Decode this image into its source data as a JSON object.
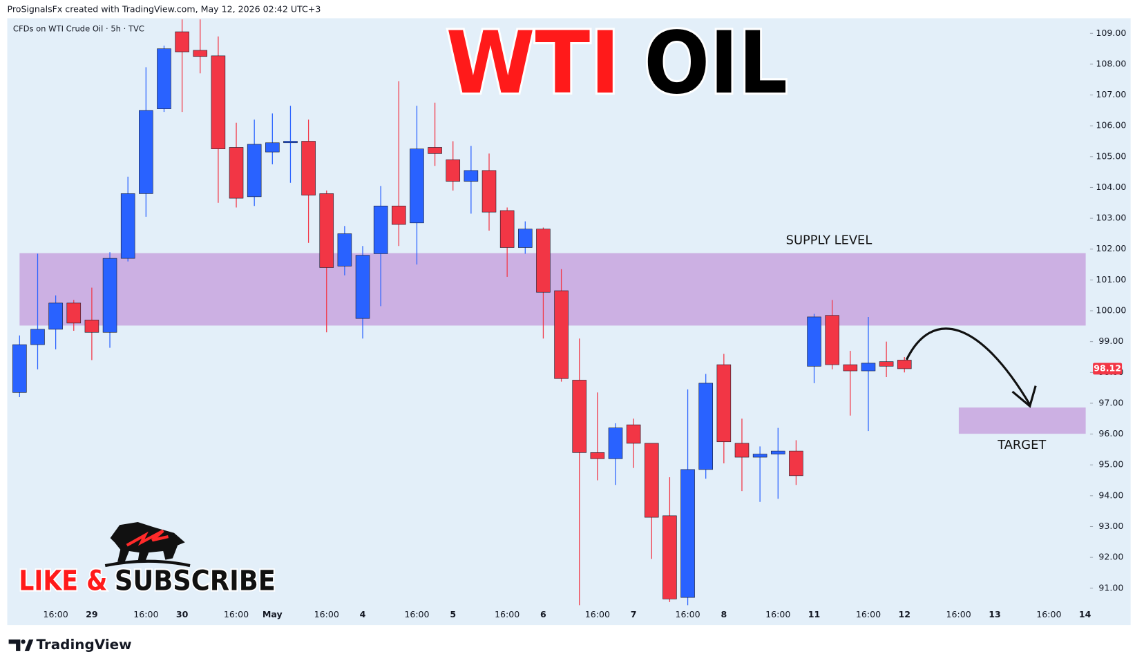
{
  "chart_data": {
    "type": "candlestick",
    "watermark": "ProSignalsFx created with TradingView.com, May 12, 2026 02:42 UTC+3",
    "symbol_info": "CFDs on WTI Crude Oil · 5h · TVC",
    "title_parts": [
      "WTI",
      "OIL"
    ],
    "title_colors": [
      "#ff1a1a",
      "#000000"
    ],
    "promo_parts": [
      "LIKE &",
      "SUBSCRIBE"
    ],
    "brand": "TradingView",
    "up_color": "#2962ff",
    "down_color": "#f23645",
    "zone_color": "#c9a9e0",
    "categories": [
      null,
      null,
      "16:00",
      null,
      "29",
      null,
      null,
      "16:00",
      null,
      "30",
      null,
      null,
      "16:00",
      null,
      "May",
      null,
      null,
      "16:00",
      null,
      "4",
      null,
      null,
      "16:00",
      null,
      "5",
      null,
      null,
      "16:00",
      null,
      "6",
      null,
      null,
      "16:00",
      null,
      "7",
      null,
      null,
      "16:00",
      null,
      "8",
      null,
      null,
      "16:00",
      null,
      "11",
      null,
      null,
      "16:00",
      null,
      "12",
      null,
      null,
      "16:00",
      null,
      "13",
      null,
      null,
      "16:00",
      null,
      "14"
    ],
    "open": [
      97.35,
      98.9,
      99.4,
      100.25,
      99.7,
      99.3,
      101.7,
      103.8,
      106.55,
      109.05,
      108.45,
      108.27,
      105.3,
      103.7,
      105.15,
      105.45,
      105.5,
      103.8,
      101.45,
      99.75,
      101.85,
      103.4,
      102.85,
      105.3,
      104.9,
      104.2,
      104.55,
      103.25,
      102.05,
      102.65,
      100.65,
      97.75,
      95.4,
      95.2,
      96.3,
      95.7,
      93.35,
      90.7,
      94.85,
      98.25,
      95.7,
      95.25,
      95.35,
      95.45,
      98.2,
      99.85,
      98.25,
      98.05,
      98.35,
      98.4,
      null,
      null,
      null,
      null,
      null,
      null,
      null,
      null,
      null,
      null
    ],
    "high": [
      99.2,
      101.85,
      100.5,
      100.35,
      100.75,
      101.9,
      104.35,
      107.9,
      108.6,
      109.45,
      109.45,
      108.9,
      106.1,
      106.2,
      106.4,
      106.65,
      106.2,
      103.9,
      102.75,
      102.1,
      104.05,
      107.45,
      106.65,
      106.75,
      105.5,
      105.35,
      105.1,
      103.35,
      102.9,
      102.7,
      101.35,
      99.1,
      97.35,
      96.35,
      96.5,
      95.7,
      94.6,
      97.45,
      97.95,
      98.6,
      96.5,
      95.6,
      96.2,
      95.8,
      99.9,
      100.35,
      98.7,
      99.8,
      99.0,
      98.5,
      null,
      null,
      null,
      null,
      null,
      null,
      null,
      null,
      null,
      null
    ],
    "low": [
      97.2,
      98.1,
      98.75,
      99.35,
      98.4,
      98.8,
      101.6,
      103.05,
      106.45,
      106.45,
      107.7,
      103.5,
      103.35,
      103.4,
      104.75,
      104.15,
      102.2,
      99.3,
      101.15,
      99.1,
      100.15,
      102.1,
      101.5,
      104.7,
      103.9,
      103.15,
      102.6,
      101.1,
      101.85,
      99.1,
      97.7,
      90.45,
      94.5,
      94.35,
      94.9,
      91.95,
      90.55,
      90.45,
      94.55,
      95.05,
      94.15,
      93.8,
      93.9,
      94.35,
      97.65,
      98.1,
      96.6,
      96.1,
      97.85,
      98.0,
      null,
      null,
      null,
      null,
      null,
      null,
      null,
      null,
      null,
      null
    ],
    "close": [
      98.9,
      99.4,
      100.25,
      99.6,
      99.3,
      101.7,
      103.8,
      106.5,
      108.5,
      108.4,
      108.25,
      105.25,
      103.65,
      105.4,
      105.45,
      105.5,
      103.75,
      101.4,
      102.5,
      101.8,
      103.4,
      102.8,
      105.25,
      105.1,
      104.2,
      104.55,
      103.2,
      102.05,
      102.65,
      100.6,
      97.8,
      95.4,
      95.2,
      96.2,
      95.7,
      93.3,
      90.65,
      94.85,
      97.65,
      95.75,
      95.25,
      95.35,
      95.45,
      94.65,
      99.8,
      98.25,
      98.05,
      98.3,
      98.2,
      98.12,
      null,
      null,
      null,
      null,
      null,
      null,
      null,
      null,
      null,
      null
    ],
    "last_price": 98.12,
    "zones": [
      {
        "label": "SUPPLY LEVEL",
        "low": 99.52,
        "high": 101.87
      },
      {
        "label": "TARGET",
        "low": 96.01,
        "high": 96.86
      }
    ],
    "ylim": [
      90.44,
      109.49
    ],
    "yticks": [
      {
        "value": 91,
        "label": "91.00"
      },
      {
        "value": 92,
        "label": "92.00"
      },
      {
        "value": 93,
        "label": "93.00"
      },
      {
        "value": 94,
        "label": "94.00"
      },
      {
        "value": 95,
        "label": "95.00"
      },
      {
        "value": 96,
        "label": "96.00"
      },
      {
        "value": 97,
        "label": "97.00"
      },
      {
        "value": 98,
        "label": "98.00"
      },
      {
        "value": 99,
        "label": "99.00"
      },
      {
        "value": 100,
        "label": "100.00"
      },
      {
        "value": 101,
        "label": "101.00"
      },
      {
        "value": 102,
        "label": "102.00"
      },
      {
        "value": 103,
        "label": "103.00"
      },
      {
        "value": 104,
        "label": "104.00"
      },
      {
        "value": 105,
        "label": "105.00"
      },
      {
        "value": 106,
        "label": "106.00"
      },
      {
        "value": 107,
        "label": "107.00"
      },
      {
        "value": 108,
        "label": "108.00"
      },
      {
        "value": 109,
        "label": "109.00"
      }
    ]
  }
}
